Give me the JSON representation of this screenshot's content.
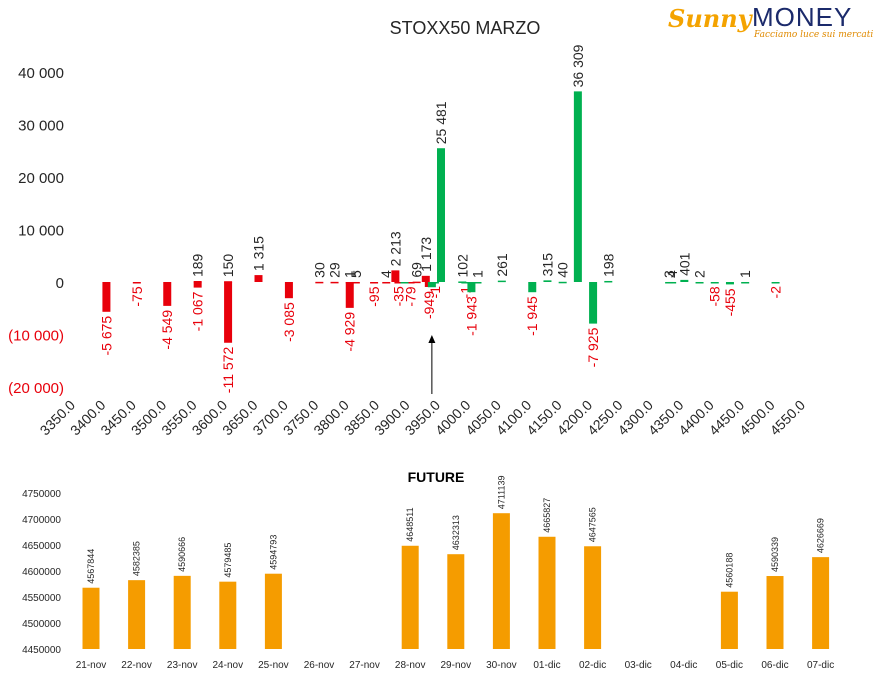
{
  "logo": {
    "brand_left": "Sunny",
    "brand_right": "MONEY",
    "tagline": "Facciamo luce sui mercati"
  },
  "colors": {
    "negative": "#e8000b",
    "positive": "#00b050",
    "future": "#f59c00",
    "neg_label": "#e8000b",
    "label": "#262626"
  },
  "chart_data": [
    {
      "type": "bar",
      "title": "STOXX50 MARZO",
      "xlabel": "",
      "ylabel": "",
      "ylim": [
        -20000,
        40000
      ],
      "yticks": [
        40000,
        30000,
        20000,
        10000,
        0,
        -10000,
        -20000
      ],
      "ytick_labels": [
        "40 000",
        "30 000",
        "20 000",
        "10 000",
        "0",
        "(10 000)",
        "(20 000)"
      ],
      "x_categories": [
        "3350.0",
        "3400.0",
        "3450.0",
        "3500.0",
        "3550.0",
        "3600.0",
        "3650.0",
        "3700.0",
        "3750.0",
        "3800.0",
        "3850.0",
        "3900.0",
        "3950.0",
        "4000.0",
        "4050.0",
        "4100.0",
        "4150.0",
        "4200.0",
        "4250.0",
        "4300.0",
        "4350.0",
        "4400.0",
        "4450.0",
        "4500.0",
        "4550.0"
      ],
      "series": [
        {
          "color_key": "red",
          "points": [
            {
              "x": 3400,
              "y": -5675,
              "label": "-5 675"
            },
            {
              "x": 3450,
              "y": -75,
              "label": "-75"
            },
            {
              "x": 3500,
              "y": -4549,
              "label": "-4 549"
            },
            {
              "x": 3550,
              "y": 189,
              "label": "189"
            },
            {
              "x": 3550,
              "y": -1067,
              "label": "-1 067"
            },
            {
              "x": 3600,
              "y": 150,
              "label": "150"
            },
            {
              "x": 3600,
              "y": -11572,
              "label": "-11 572"
            },
            {
              "x": 3650,
              "y": 1315,
              "label": "1 315"
            },
            {
              "x": 3700,
              "y": -3085,
              "label": "-3 085"
            },
            {
              "x": 3750,
              "y": 30,
              "label": "30"
            },
            {
              "x": 3775,
              "y": 29,
              "label": "29"
            },
            {
              "x": 3800,
              "y": 1,
              "label": "1"
            },
            {
              "x": 3810,
              "y": 5,
              "label": "5"
            },
            {
              "x": 3800,
              "y": -4929,
              "label": "-4 929"
            },
            {
              "x": 3840,
              "y": -95,
              "label": "-95"
            },
            {
              "x": 3860,
              "y": 4,
              "label": "4"
            },
            {
              "x": 3875,
              "y": 2213,
              "label": "2 213"
            },
            {
              "x": 3880,
              "y": -35,
              "label": "-35"
            },
            {
              "x": 3900,
              "y": -79,
              "label": "-79"
            },
            {
              "x": 3910,
              "y": 69,
              "label": "69"
            },
            {
              "x": 3925,
              "y": 1173,
              "label": "1 173"
            },
            {
              "x": 3930,
              "y": -949,
              "label": "-949"
            }
          ]
        },
        {
          "color_key": "green",
          "points": [
            {
              "x": 3890,
              "y": -1,
              "label": ""
            },
            {
              "x": 3940,
              "y": -1,
              "label": "-1"
            },
            {
              "x": 3935,
              "y": -1000,
              "label": ""
            },
            {
              "x": 3950,
              "y": 25481,
              "label": "25 481"
            },
            {
              "x": 3985,
              "y": 102,
              "label": "102"
            },
            {
              "x": 3990,
              "y": -1,
              "label": "-1"
            },
            {
              "x": 4000,
              "y": -1943,
              "label": "-1 943"
            },
            {
              "x": 4010,
              "y": 1,
              "label": "1"
            },
            {
              "x": 4050,
              "y": 261,
              "label": "261"
            },
            {
              "x": 4100,
              "y": -1945,
              "label": "-1 945"
            },
            {
              "x": 4125,
              "y": 315,
              "label": "315"
            },
            {
              "x": 4150,
              "y": 40,
              "label": "40"
            },
            {
              "x": 4175,
              "y": 36309,
              "label": "36 309"
            },
            {
              "x": 4200,
              "y": -7925,
              "label": "-7 925"
            },
            {
              "x": 4225,
              "y": 198,
              "label": "198"
            },
            {
              "x": 4325,
              "y": 3,
              "label": "3"
            },
            {
              "x": 4330,
              "y": 4,
              "label": "4"
            },
            {
              "x": 4350,
              "y": 401,
              "label": "401"
            },
            {
              "x": 4375,
              "y": 2,
              "label": "2"
            },
            {
              "x": 4400,
              "y": -58,
              "label": "-58"
            },
            {
              "x": 4425,
              "y": -455,
              "label": "-455"
            },
            {
              "x": 4450,
              "y": 1,
              "label": "1"
            },
            {
              "x": 4500,
              "y": -2,
              "label": "-2"
            }
          ]
        }
      ],
      "annotation": {
        "type": "arrow",
        "x": 3935,
        "points_to": "up"
      }
    },
    {
      "type": "bar",
      "title": "FUTURE",
      "xlabel": "",
      "ylabel": "",
      "ylim": [
        4450000,
        4750000
      ],
      "yticks": [
        4750000,
        4700000,
        4650000,
        4600000,
        4550000,
        4500000,
        4450000
      ],
      "categories": [
        "21-nov",
        "22-nov",
        "23-nov",
        "24-nov",
        "25-nov",
        "26-nov",
        "27-nov",
        "28-nov",
        "29-nov",
        "30-nov",
        "01-dic",
        "02-dic",
        "03-dic",
        "04-dic",
        "05-dic",
        "06-dic",
        "07-dic"
      ],
      "values": [
        4567844,
        4582385,
        4590666,
        4579485,
        4594793,
        null,
        null,
        4648511,
        4632313,
        4711139,
        4665827,
        4647565,
        null,
        null,
        4560188,
        4590339,
        4626669
      ],
      "labels": [
        "4567844",
        "4582385",
        "4590666",
        "4579485",
        "4594793",
        "",
        "",
        "4648511",
        "4632313",
        "4711139",
        "4665827",
        "4647565",
        "",
        "",
        "4560188",
        "4590339",
        "4626669"
      ]
    }
  ]
}
